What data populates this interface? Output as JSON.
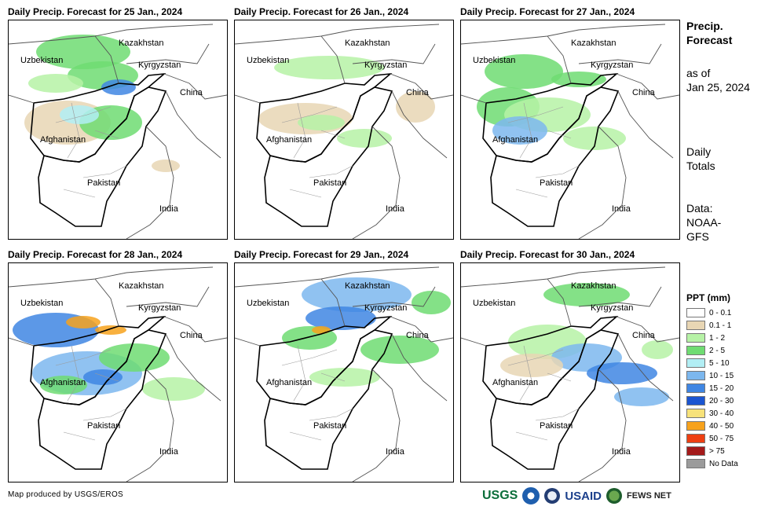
{
  "panels": [
    {
      "title": "Daily Precip. Forecast for 25 Jan., 2024"
    },
    {
      "title": "Daily Precip. Forecast for 26 Jan., 2024"
    },
    {
      "title": "Daily Precip. Forecast for 27 Jan., 2024"
    },
    {
      "title": "Daily Precip. Forecast for 28 Jan., 2024"
    },
    {
      "title": "Daily Precip. Forecast for 29 Jan., 2024"
    },
    {
      "title": "Daily Precip. Forecast for 30 Jan., 2024"
    }
  ],
  "map_labels": {
    "kazakhstan": "Kazakhstan",
    "uzbekistan": "Uzbekistan",
    "kyrgyzstan": "Kyrgyzstan",
    "china": "China",
    "afghanistan": "Afghanistan",
    "pakistan": "Pakistan",
    "india": "India"
  },
  "side": {
    "title_line1": "Precip.",
    "title_line2": "Forecast",
    "asof_line1": "as of",
    "asof_line2": "Jan 25, 2024",
    "daily_line1": "Daily",
    "daily_line2": "Totals",
    "data_line1": "Data:",
    "data_line2": "NOAA-",
    "data_line3": "GFS"
  },
  "legend": {
    "title": "PPT (mm)",
    "items": [
      {
        "label": "0 - 0.1",
        "color": "#ffffff"
      },
      {
        "label": "0.1 - 1",
        "color": "#e8d6b4"
      },
      {
        "label": "1 - 2",
        "color": "#b6f2a6"
      },
      {
        "label": "2 - 5",
        "color": "#6fdc72"
      },
      {
        "label": "5 - 10",
        "color": "#b2eef4"
      },
      {
        "label": "10 - 15",
        "color": "#7cb7ee"
      },
      {
        "label": "15 - 20",
        "color": "#3f86e3"
      },
      {
        "label": "20 - 30",
        "color": "#1b55d1"
      },
      {
        "label": "30 - 40",
        "color": "#f7e27a"
      },
      {
        "label": "40 - 50",
        "color": "#f7a21c"
      },
      {
        "label": "50 - 75",
        "color": "#ee3f12"
      },
      {
        "label": "> 75",
        "color": "#a41a1a"
      },
      {
        "label": "No Data",
        "color": "#9b9b9b"
      }
    ]
  },
  "footer": {
    "credit": "Map produced by USGS/EROS",
    "logo_usgs": "USGS",
    "logo_usaid": "USAID",
    "logo_fews": "FEWS NET"
  },
  "logo_icons": [
    "noaa-logo-icon",
    "dhs-logo-icon",
    "usaid-flag-icon",
    "fews-globe-icon"
  ]
}
